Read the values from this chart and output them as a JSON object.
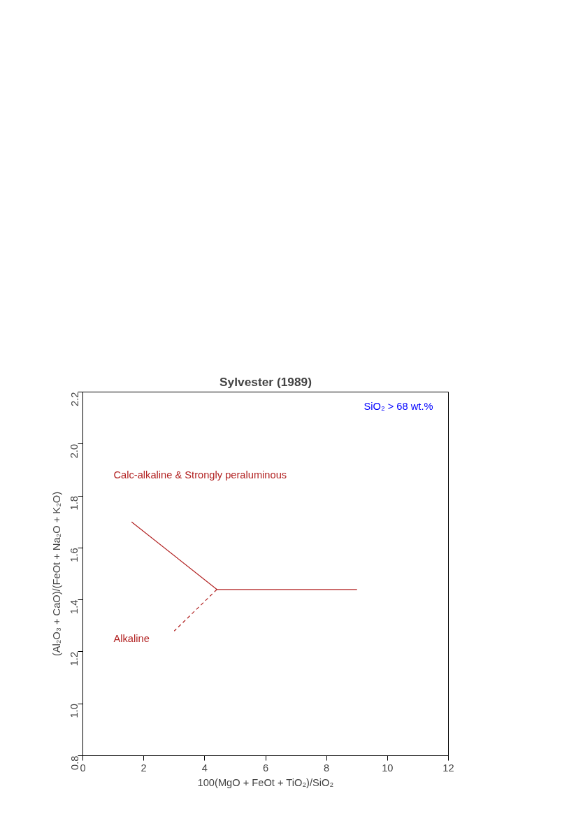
{
  "chart_data": {
    "type": "line",
    "title": "Sylvester (1989)",
    "xlabel": "100(MgO + FeOt + TiO₂)/SiO₂",
    "ylabel": "(Al₂O₃ + CaO)/(FeOt + Na₂O + K₂O)",
    "series": [
      {
        "color": "#b22222",
        "line_style": "solid",
        "x": [
          1.6,
          4.4,
          9
        ],
        "values": [
          1.7,
          1.44,
          1.44
        ]
      },
      {
        "color": "#b22222",
        "line_style": "dashed",
        "x": [
          4.4,
          3
        ],
        "values": [
          1.44,
          1.28
        ]
      }
    ],
    "xlim": [
      0,
      12
    ],
    "ylim": [
      0.8,
      2.2
    ],
    "xticks": [
      0,
      2,
      4,
      6,
      8,
      10,
      12
    ],
    "yticks": [
      {
        "value": 0.8,
        "label": "0.8"
      },
      {
        "value": 1.0,
        "label": "1.0"
      },
      {
        "value": 1.2,
        "label": "1.2"
      },
      {
        "value": 1.4,
        "label": "1.4"
      },
      {
        "value": 1.6,
        "label": "1.6"
      },
      {
        "value": 1.8,
        "label": "1.8"
      },
      {
        "value": 2.0,
        "label": "2.0"
      },
      {
        "value": 2.2,
        "label": "2.2"
      }
    ],
    "annotations": [
      "SiO₂ > 68 wt.%",
      "Calc-alkaline & Strongly peraluminous",
      "Alkaline"
    ],
    "grid": false,
    "marker": "none"
  }
}
